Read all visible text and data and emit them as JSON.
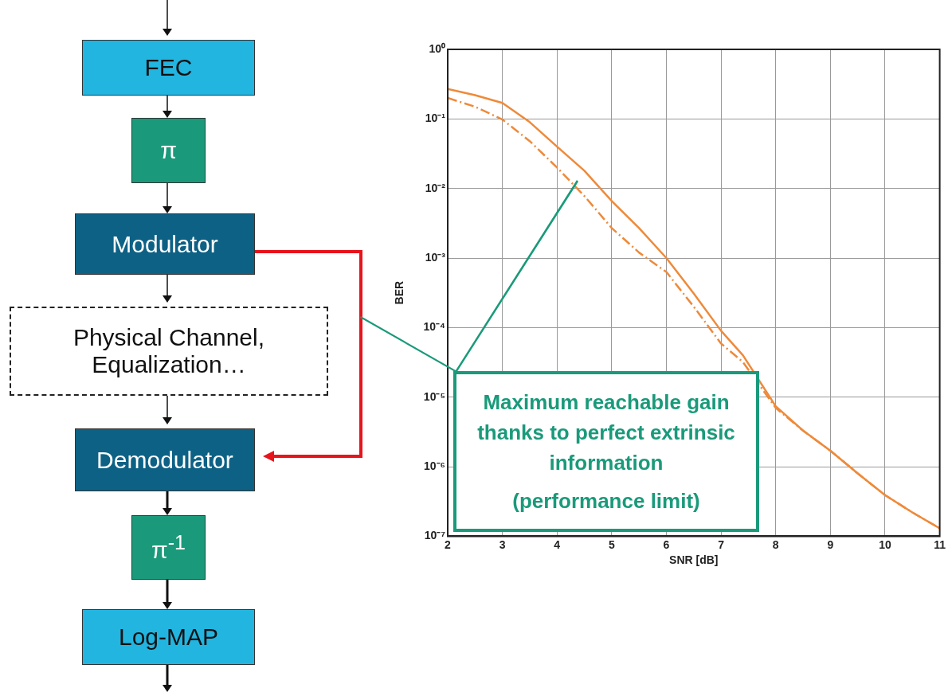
{
  "chart_data": {
    "type": "line",
    "xlabel": "SNR [dB]",
    "ylabel": "BER",
    "log": "y",
    "grid": true,
    "legend": false,
    "marker": "none",
    "xlim": [
      2,
      11
    ],
    "xticks": [
      2,
      3,
      4,
      5,
      6,
      7,
      8,
      9,
      10,
      11
    ],
    "ylim": [
      1e-07,
      1
    ],
    "yticks": [
      {
        "value": 1,
        "label": "10⁰"
      },
      {
        "value": 0.1,
        "label": "10⁻¹"
      },
      {
        "value": 0.01,
        "label": "10⁻²"
      },
      {
        "value": 0.001,
        "label": "10⁻³"
      },
      {
        "value": 0.0001,
        "label": "10⁻⁴"
      },
      {
        "value": 1e-05,
        "label": "10⁻⁵"
      },
      {
        "value": 1e-06,
        "label": "10⁻⁶"
      },
      {
        "value": 1e-07,
        "label": "10⁻⁷"
      }
    ],
    "x": [
      2,
      2.5,
      3,
      3.5,
      4,
      4.5,
      5,
      5.5,
      6,
      6.5,
      7,
      7.4,
      8,
      8.5,
      9,
      9.5,
      10,
      10.5,
      11
    ],
    "series": [
      {
        "color": "#ee8a3a",
        "line_style": "solid",
        "values": [
          0.27,
          0.22,
          0.17,
          0.09,
          0.04,
          0.018,
          0.0066,
          0.0027,
          0.001,
          0.00031,
          9e-05,
          4e-05,
          7.4e-06,
          3.3e-06,
          1.7e-06,
          8e-07,
          3.9e-07,
          2.2e-07,
          1.3e-07
        ]
      },
      {
        "color": "#ee8a3a",
        "line_style": "dashed",
        "values": [
          0.2,
          0.15,
          0.098,
          0.048,
          0.02,
          0.0078,
          0.0027,
          0.0012,
          0.00063,
          0.0002,
          5.9e-05,
          3.2e-05,
          7e-06,
          3.3e-06,
          1.7e-06,
          8e-07,
          3.9e-07,
          2.2e-07,
          1.3e-07
        ]
      }
    ],
    "annotations": [
      "FEC",
      "π",
      "Modulator",
      "Physical Channel, Equalization…",
      "Demodulator",
      "π$^{-1}$",
      "Log-MAP",
      "Maximum reachable gain thanks to perfect extrinsic information",
      "(performance limit)"
    ]
  }
}
